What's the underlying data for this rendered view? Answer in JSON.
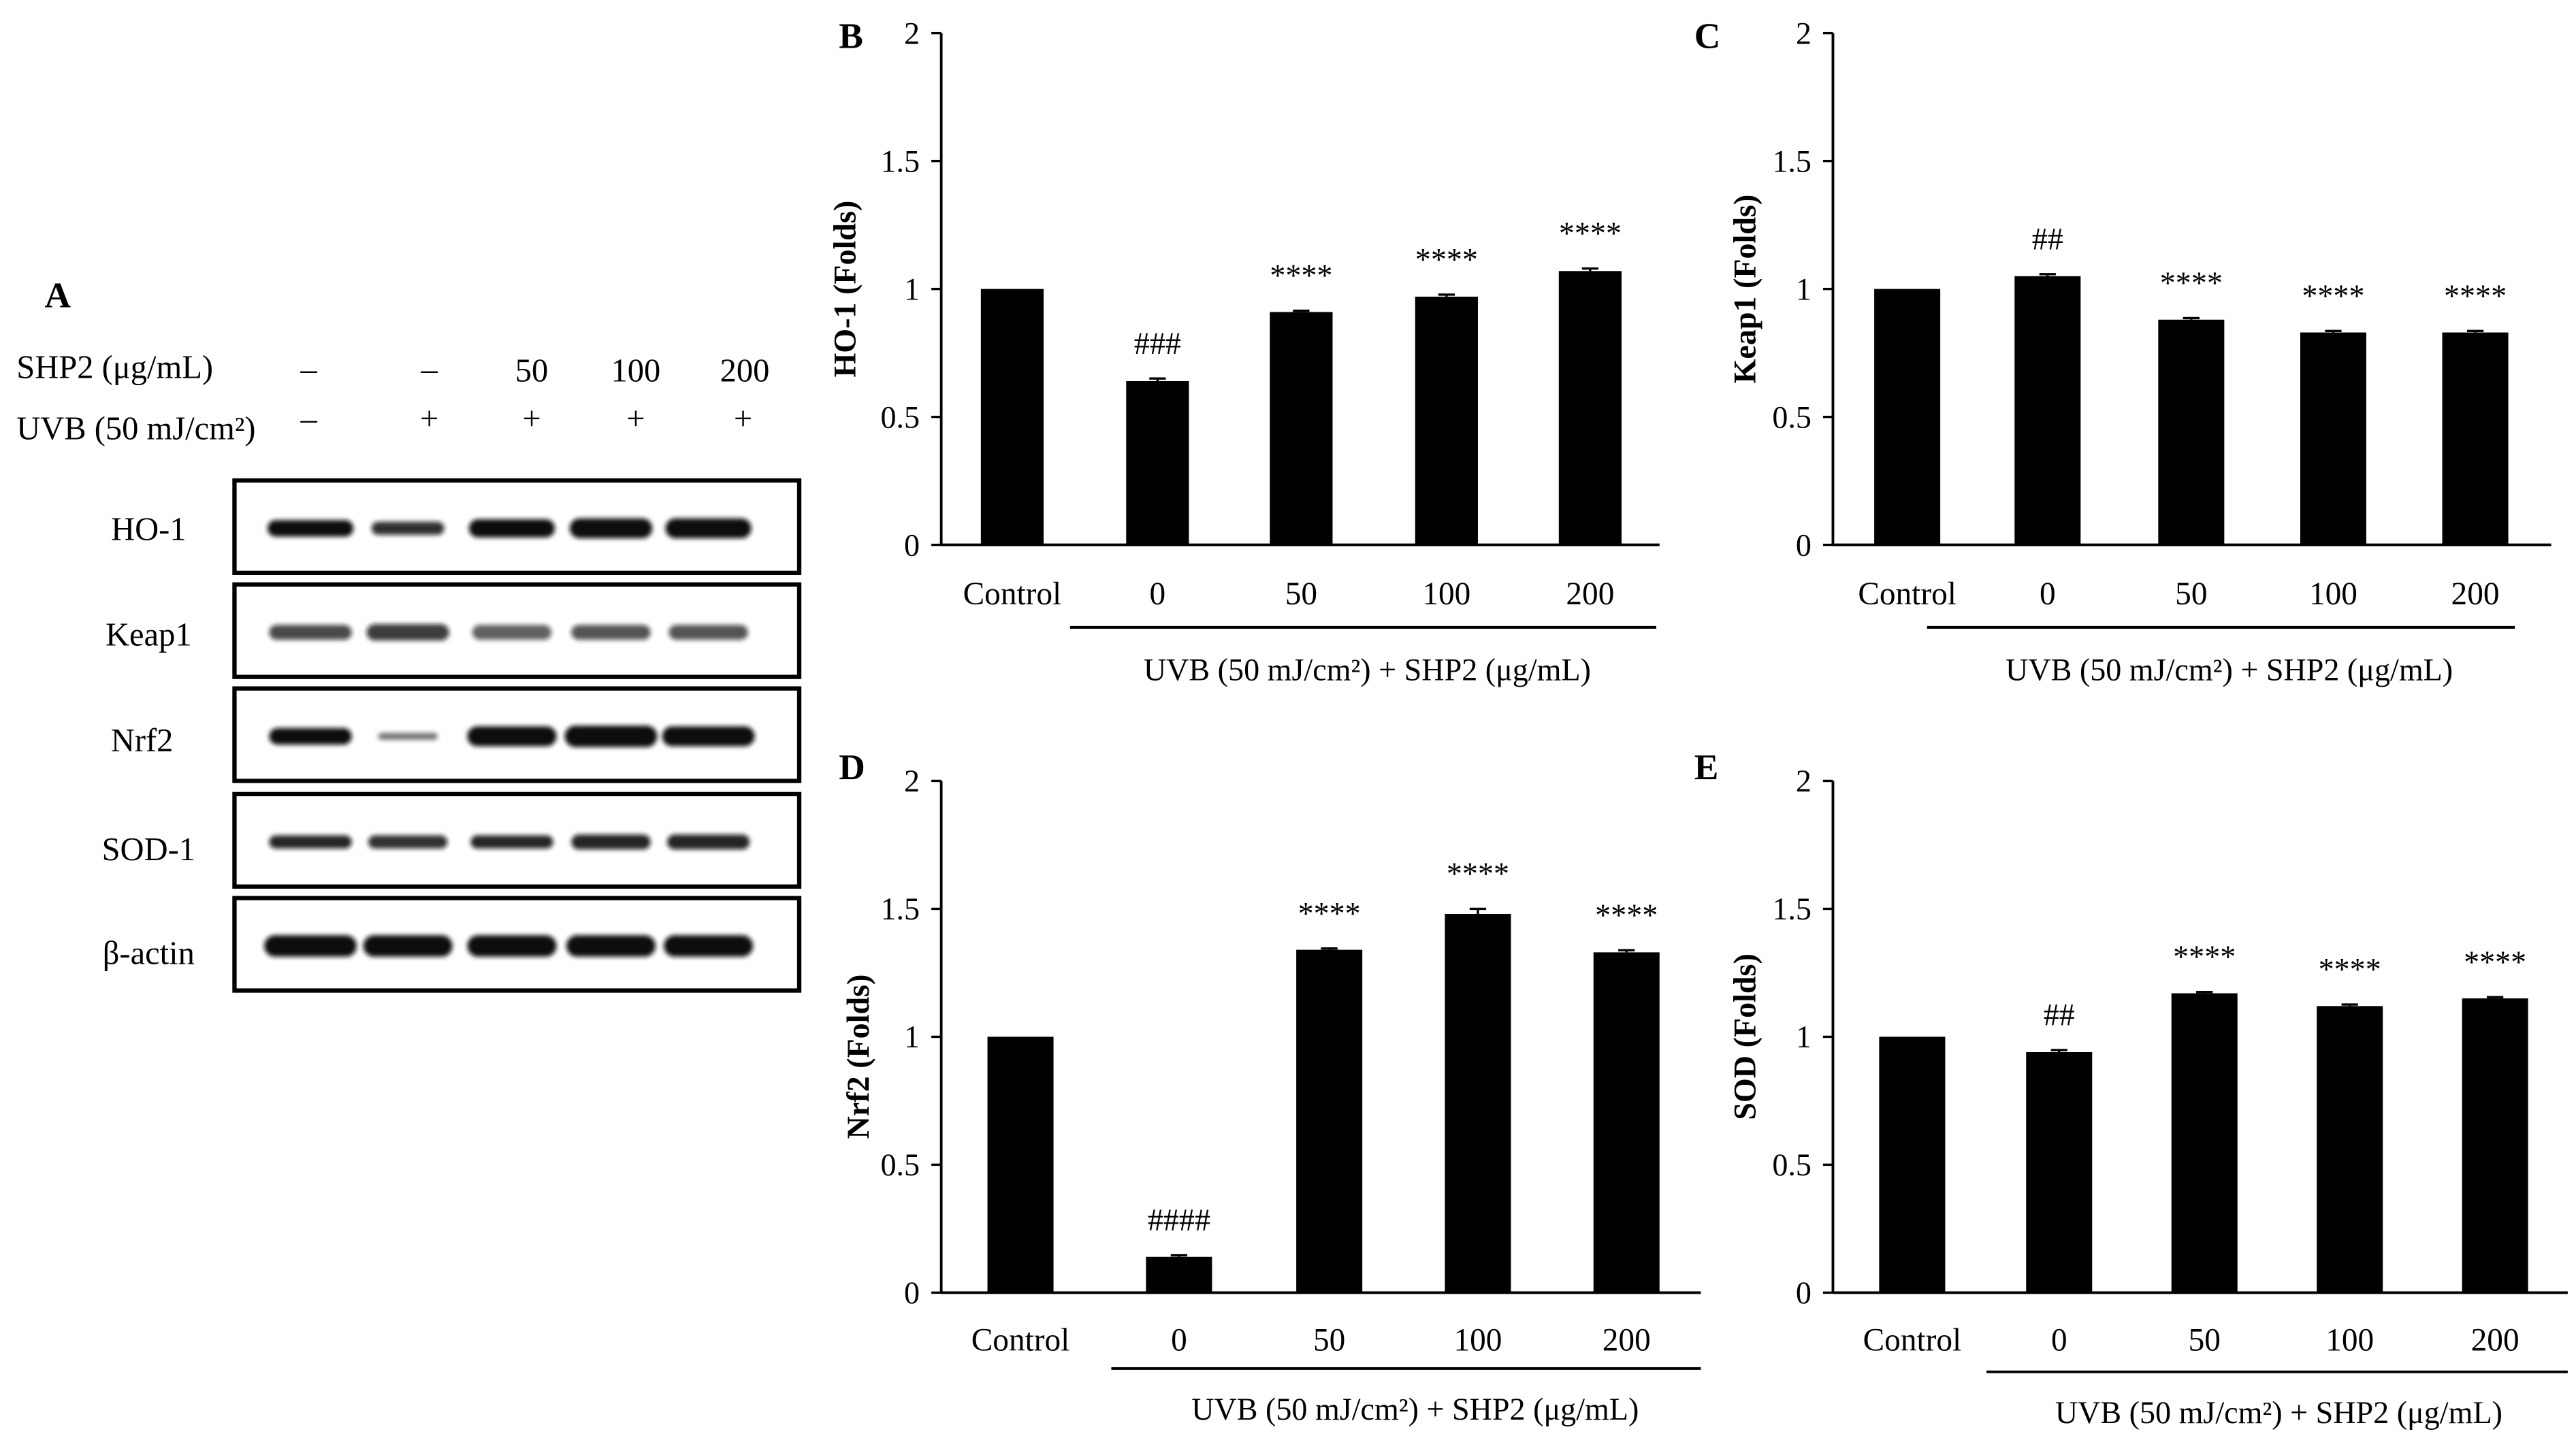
{
  "blot": {
    "panel_label": "A",
    "shp2_label": "SHP2 (μg/mL)",
    "uvb_label": "UVB (50 mJ/cm²)",
    "shp2_values": [
      "–",
      "–",
      "50",
      "100",
      "200"
    ],
    "uvb_values": [
      "–",
      "+",
      "+",
      "+",
      "+"
    ],
    "rows": [
      "HO-1",
      "Keap1",
      "Nrf2",
      "SOD-1",
      "β-actin"
    ]
  },
  "chart_data": [
    {
      "panel": "B",
      "type": "bar",
      "categories": [
        "Control",
        "0",
        "50",
        "100",
        "200"
      ],
      "values": [
        1.0,
        0.64,
        0.91,
        0.97,
        1.07
      ],
      "errors": [
        0,
        0.01,
        0.005,
        0.008,
        0.01
      ],
      "annotations": [
        null,
        "###",
        "****",
        "****",
        "****"
      ],
      "ylabel": "HO-1 (Folds)",
      "xlabel": "UVB (50 mJ/cm²) + SHP2 (μg/mL)",
      "ylim": [
        0,
        2
      ],
      "yticks": [
        0,
        0.5,
        1,
        1.5,
        2
      ],
      "ytick_labels": [
        "0",
        "0.5",
        "1",
        "1.5",
        "2"
      ]
    },
    {
      "panel": "C",
      "type": "bar",
      "categories": [
        "Control",
        "0",
        "50",
        "100",
        "200"
      ],
      "values": [
        1.0,
        1.05,
        0.88,
        0.83,
        0.83
      ],
      "errors": [
        0,
        0.008,
        0.006,
        0.006,
        0.006
      ],
      "annotations": [
        null,
        "##",
        "****",
        "****",
        "****"
      ],
      "ylabel": "Keap1 (Folds)",
      "xlabel": "UVB (50 mJ/cm²) + SHP2 (μg/mL)",
      "ylim": [
        0,
        2
      ],
      "yticks": [
        0,
        0.5,
        1,
        1.5,
        2
      ],
      "ytick_labels": [
        "0",
        "0.5",
        "1",
        "1.5",
        "2"
      ]
    },
    {
      "panel": "D",
      "type": "bar",
      "categories": [
        "Control",
        "0",
        "50",
        "100",
        "200"
      ],
      "values": [
        1.0,
        0.14,
        1.34,
        1.48,
        1.33
      ],
      "errors": [
        0,
        0.006,
        0.005,
        0.02,
        0.008
      ],
      "annotations": [
        null,
        "####",
        "****",
        "****",
        "****"
      ],
      "ylabel": "Nrf2 (Folds)",
      "xlabel": "UVB (50 mJ/cm²) + SHP2 (μg/mL)",
      "ylim": [
        0,
        2
      ],
      "yticks": [
        0,
        0.5,
        1,
        1.5,
        2
      ],
      "ytick_labels": [
        "0",
        "0.5",
        "1",
        "1.5",
        "2"
      ]
    },
    {
      "panel": "E",
      "type": "bar",
      "categories": [
        "Control",
        "0",
        "50",
        "100",
        "200"
      ],
      "values": [
        1.0,
        0.94,
        1.17,
        1.12,
        1.15
      ],
      "errors": [
        0,
        0.008,
        0.005,
        0.006,
        0.005
      ],
      "annotations": [
        null,
        "##",
        "****",
        "****",
        "****"
      ],
      "ylabel": "SOD (Folds)",
      "xlabel": "UVB (50 mJ/cm²) + SHP2 (μg/mL)",
      "ylim": [
        0,
        2
      ],
      "yticks": [
        0,
        0.5,
        1,
        1.5,
        2
      ],
      "ytick_labels": [
        "0",
        "0.5",
        "1",
        "1.5",
        "2"
      ]
    }
  ],
  "colors": {
    "bar": "#000000",
    "axis": "#000000",
    "band": "#111111",
    "background": "#ffffff"
  }
}
